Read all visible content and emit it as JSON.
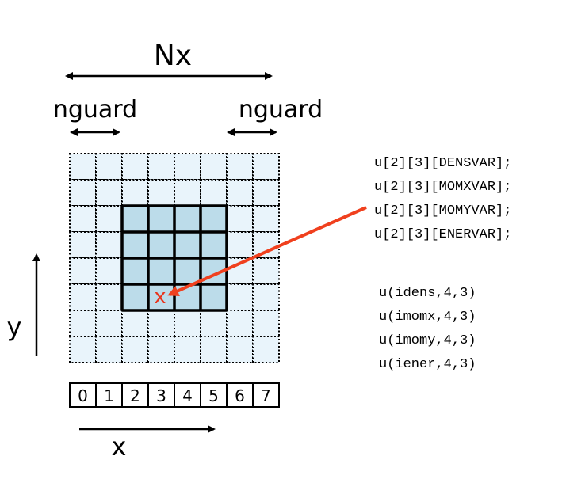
{
  "labels": {
    "nx": "Nx",
    "nguard_left": "nguard",
    "nguard_right": "nguard",
    "y_axis": "y",
    "x_axis": "x",
    "marker": "x"
  },
  "grid": {
    "cols": 8,
    "rows": 8,
    "interior_start": 2,
    "interior_count": 4,
    "marked_cell": {
      "col": 3,
      "row": 5
    }
  },
  "index_labels": [
    "0",
    "1",
    "2",
    "3",
    "4",
    "5",
    "6",
    "7"
  ],
  "c_code_lines": [
    "u[2][3][DENSVAR];",
    "u[2][3][MOMXVAR];",
    "u[2][3][MOMYVAR];",
    "u[2][3][ENERVAR];"
  ],
  "fortran_code_lines": [
    "u(idens,4,3)",
    "u(imomx,4,3)",
    "u(imomy,4,3)",
    "u(iener,4,3)"
  ],
  "colors": {
    "cell_fill": "#e9f4fb",
    "interior_fill": "#bcdcea",
    "arrow": "#f0401e",
    "marker": "#e8341c"
  }
}
